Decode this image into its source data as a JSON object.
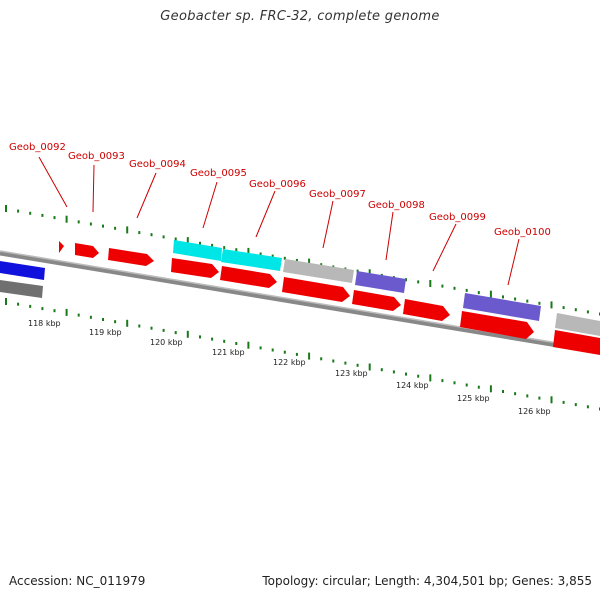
{
  "title": "Geobacter sp. FRC-32, complete genome",
  "footer": {
    "accession_text": "Accession: NC_011979",
    "summary_text": "Topology: circular; Length: 4,304,501 bp; Genes: 3,855"
  },
  "colors": {
    "forward_cds": "#ee0000",
    "highlight_cyan": "#00e5e5",
    "pseudo_gray": "#b8b8b8",
    "dark_gray": "#707070",
    "blue": "#1111dd",
    "purple": "#6a5acd",
    "label_red": "#cc0000",
    "tick_green": "#1a7a1a",
    "backbone": "#888888"
  },
  "scale_labels": [
    "118 kbp",
    "119 kbp",
    "120 kbp",
    "121 kbp",
    "122 kbp",
    "123 kbp",
    "124 kbp",
    "125 kbp",
    "126 kbp"
  ],
  "gene_labels": [
    "Geob_0092",
    "Geob_0093",
    "Geob_0094",
    "Geob_0095",
    "Geob_0096",
    "Geob_0097",
    "Geob_0098",
    "Geob_0099",
    "Geob_0100"
  ]
}
